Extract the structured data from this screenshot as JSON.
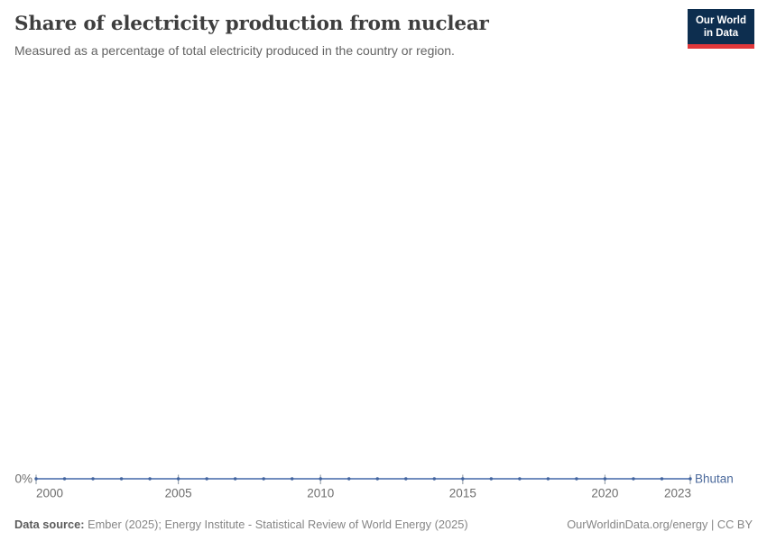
{
  "header": {
    "title": "Share of electricity production from nuclear",
    "subtitle": "Measured as a percentage of total electricity produced in the country or region.",
    "logo": {
      "line1": "Our World",
      "line2": "in Data"
    }
  },
  "footer": {
    "data_source_label": "Data source:",
    "data_source_text": "Ember (2025); Energy Institute - Statistical Review of World Energy (2025)",
    "url_license": "OurWorldinData.org/energy | CC BY"
  },
  "colors": {
    "title": "#3e3e3e",
    "subtitle": "#636363",
    "axis_text": "#6e6e6e",
    "tick_mark": "#9aa3ad",
    "line": "#5d7db5",
    "marker": "#41639e",
    "entity_label": "#4c6a9c",
    "footer_text": "#868686",
    "logo_background": "#0d2e4f",
    "logo_stripe": "#e0373a"
  },
  "chart_data": {
    "type": "line",
    "title": "Share of electricity production from nuclear",
    "subtitle": "Measured as a percentage of total electricity produced in the country or region.",
    "xlabel": "",
    "ylabel": "",
    "xlim": [
      2000,
      2023
    ],
    "ylim": [
      0,
      1
    ],
    "grid": false,
    "legend": "end-of-line-label",
    "x_ticks": [
      2000,
      2005,
      2010,
      2015,
      2020,
      2023
    ],
    "y_tick_labels": [
      "0%"
    ],
    "series": [
      {
        "name": "Bhutan",
        "color": "#4c6a9c",
        "x": [
          2000,
          2001,
          2002,
          2003,
          2004,
          2005,
          2006,
          2007,
          2008,
          2009,
          2010,
          2011,
          2012,
          2013,
          2014,
          2015,
          2016,
          2017,
          2018,
          2019,
          2020,
          2021,
          2022,
          2023
        ],
        "values": [
          0,
          0,
          0,
          0,
          0,
          0,
          0,
          0,
          0,
          0,
          0,
          0,
          0,
          0,
          0,
          0,
          0,
          0,
          0,
          0,
          0,
          0,
          0,
          0
        ]
      }
    ]
  }
}
